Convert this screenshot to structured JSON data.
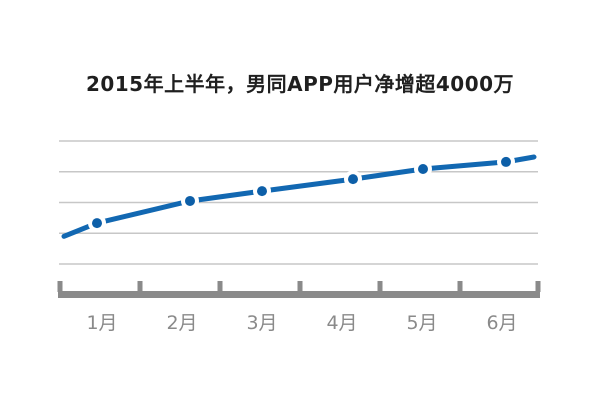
{
  "title": "2015年上半年，男同APP用户净增超4000万",
  "chart_data": {
    "type": "line",
    "title": "2015年上半年，男同APP用户净增超4000万",
    "categories": [
      "1月",
      "2月",
      "3月",
      "4月",
      "5月",
      "6月"
    ],
    "values": [
      1.33,
      2.05,
      2.37,
      2.76,
      3.09,
      3.32
    ],
    "line_edge_values": [
      0.9,
      3.48
    ],
    "ylim": [
      0,
      4
    ],
    "xlabel": "",
    "ylabel": "",
    "grid": true,
    "gridline_count": 5,
    "legend": false,
    "y_axis_ticks_labeled": false
  },
  "colors": {
    "background": "#ffffff",
    "line": "#1268b2",
    "dot": "#0d5fa8",
    "grid": "#c7c7c7",
    "axis": "#8a8a8a",
    "axis_label": "#8a8a8a",
    "title_text": "#1f1f1f"
  }
}
